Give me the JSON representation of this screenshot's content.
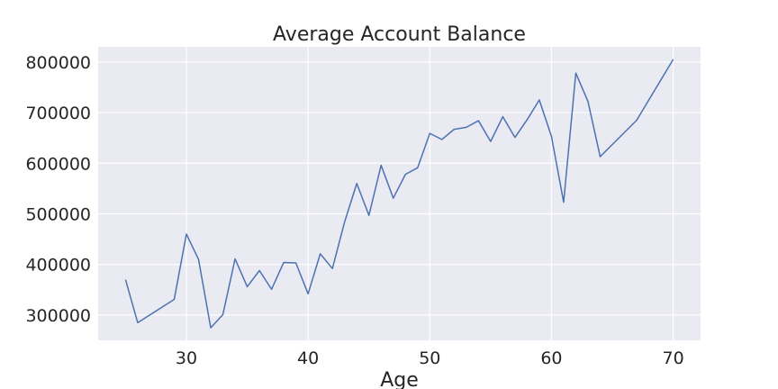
{
  "chart_data": {
    "type": "line",
    "title": "Average Account Balance",
    "xlabel": "Age",
    "ylabel": "",
    "xlim": [
      22.75,
      72.25
    ],
    "ylim": [
      250000,
      830000
    ],
    "xticks": [
      30,
      40,
      50,
      60,
      70
    ],
    "yticks": [
      300000,
      400000,
      500000,
      600000,
      700000,
      800000
    ],
    "grid": true,
    "colors": {
      "background": "#eaeaf2",
      "grid": "#ffffff",
      "line": "#4c72b0",
      "text": "#262626"
    },
    "series": [
      {
        "x": [
          25,
          26,
          29,
          30,
          31,
          32,
          33,
          34,
          35,
          36,
          37,
          38,
          39,
          40,
          41,
          42,
          43,
          44,
          45,
          46,
          47,
          48,
          49,
          50,
          51,
          52,
          53,
          54,
          55,
          56,
          57,
          58,
          59,
          60,
          61,
          62,
          63,
          64,
          67,
          70
        ],
        "values": [
          370000,
          285000,
          331000,
          460000,
          410000,
          275000,
          301000,
          411000,
          356000,
          388000,
          351000,
          404000,
          403000,
          342000,
          421000,
          392000,
          484000,
          560000,
          497000,
          596000,
          531000,
          578000,
          591000,
          659000,
          647000,
          667000,
          671000,
          684000,
          643000,
          692000,
          651000,
          686000,
          725000,
          653000,
          523000,
          778000,
          722000,
          613000,
          685000,
          805000
        ]
      }
    ]
  }
}
